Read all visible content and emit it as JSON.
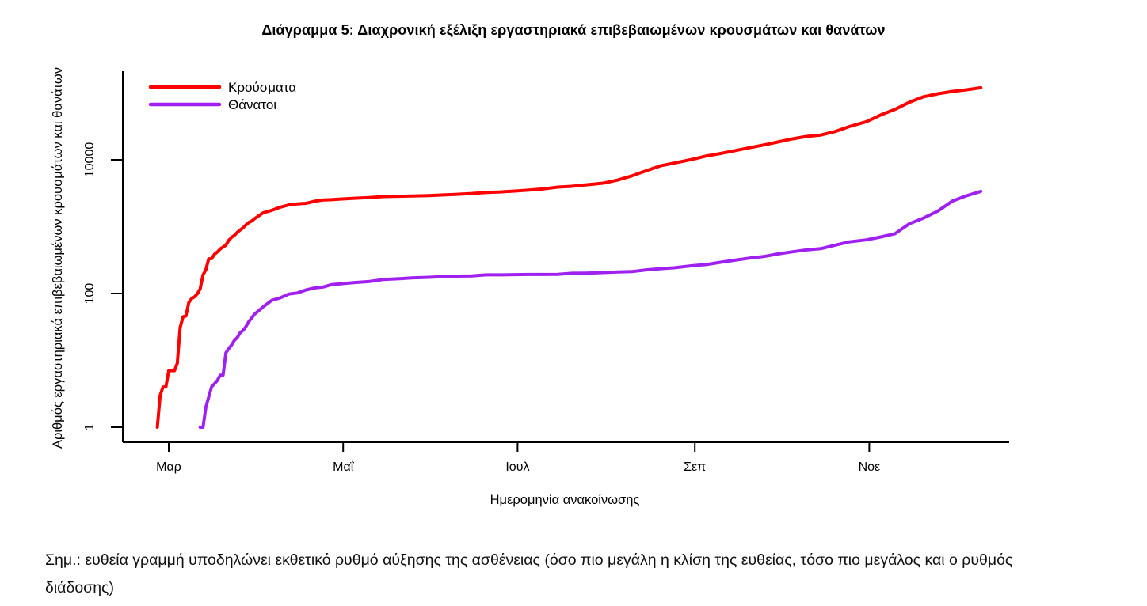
{
  "title": "Διάγραμμα 5: Διαχρονική εξέλιξη εργαστηριακά επιβεβαιωμένων κρουσμάτων και θανάτων",
  "note": {
    "line1": "Σημ.: ευθεία γραμμή υποδηλώνει εκθετικό ρυθμό αύξησης της ασθένειας (όσο πιο μεγάλη η κλίση της ευθείας, τόσο πιο μεγάλος και ο ρυθμός",
    "line2": "διάδοσης)"
  },
  "colors": {
    "cases": "#FF0000",
    "deaths": "#A020F0",
    "axis": "#000000",
    "background": "#FFFFFF"
  },
  "chart_data": {
    "type": "line",
    "title": "Διάγραμμα 5: Διαχρονική εξέλιξη εργαστηριακά επιβεβαιωμένων κρουσμάτων και θανάτων",
    "xlabel": "Ημερομηνία ανακοίνωσης",
    "ylabel": "Αριθμός εργαστηριακά επιβεβαιωμένων κρουσμάτων και θανάτων",
    "y_scale": "log10",
    "ylim": [
      1,
      200000
    ],
    "y_ticks": [
      1,
      100,
      10000
    ],
    "x_unit": "days (0 = first plotted announcement, late Feb; ticks mark month starts)",
    "x_ticks": [
      {
        "label": "Μαρ",
        "day": 4
      },
      {
        "label": "Μαΐ",
        "day": 65
      },
      {
        "label": "Ιουλ",
        "day": 126
      },
      {
        "label": "Σεπ",
        "day": 188
      },
      {
        "label": "Νοε",
        "day": 249
      }
    ],
    "grid": false,
    "legend_position": "top-left",
    "series": [
      {
        "key": "cases",
        "name": "Κρούσματα",
        "color": "#FF0000",
        "points": [
          [
            0,
            1
          ],
          [
            1,
            3
          ],
          [
            2,
            4
          ],
          [
            3,
            4
          ],
          [
            4,
            7
          ],
          [
            6,
            7
          ],
          [
            7,
            9
          ],
          [
            8,
            31
          ],
          [
            9,
            45
          ],
          [
            10,
            46
          ],
          [
            11,
            73
          ],
          [
            12,
            84
          ],
          [
            13,
            89
          ],
          [
            14,
            99
          ],
          [
            15,
            117
          ],
          [
            16,
            190
          ],
          [
            17,
            228
          ],
          [
            18,
            331
          ],
          [
            19,
            331
          ],
          [
            20,
            387
          ],
          [
            21,
            418
          ],
          [
            22,
            464
          ],
          [
            23,
            495
          ],
          [
            24,
            530
          ],
          [
            25,
            624
          ],
          [
            26,
            695
          ],
          [
            27,
            743
          ],
          [
            28,
            821
          ],
          [
            29,
            892
          ],
          [
            30,
            966
          ],
          [
            31,
            1061
          ],
          [
            32,
            1156
          ],
          [
            33,
            1212
          ],
          [
            34,
            1314
          ],
          [
            37,
            1613
          ],
          [
            40,
            1755
          ],
          [
            43,
            1955
          ],
          [
            46,
            2114
          ],
          [
            49,
            2192
          ],
          [
            52,
            2235
          ],
          [
            55,
            2401
          ],
          [
            58,
            2506
          ],
          [
            61,
            2534
          ],
          [
            64,
            2591
          ],
          [
            69,
            2663
          ],
          [
            74,
            2716
          ],
          [
            79,
            2819
          ],
          [
            84,
            2850
          ],
          [
            89,
            2878
          ],
          [
            95,
            2917
          ],
          [
            100,
            2980
          ],
          [
            105,
            3049
          ],
          [
            110,
            3134
          ],
          [
            115,
            3256
          ],
          [
            120,
            3310
          ],
          [
            125,
            3409
          ],
          [
            130,
            3519
          ],
          [
            135,
            3672
          ],
          [
            140,
            3910
          ],
          [
            145,
            4012
          ],
          [
            150,
            4227
          ],
          [
            156,
            4477
          ],
          [
            161,
            4974
          ],
          [
            166,
            5749
          ],
          [
            171,
            6858
          ],
          [
            176,
            8138
          ],
          [
            181,
            8987
          ],
          [
            187,
            10134
          ],
          [
            192,
            11386
          ],
          [
            197,
            12452
          ],
          [
            202,
            13730
          ],
          [
            207,
            15142
          ],
          [
            212,
            16627
          ],
          [
            217,
            18475
          ],
          [
            222,
            20541
          ],
          [
            227,
            22358
          ],
          [
            232,
            23495
          ],
          [
            237,
            26469
          ],
          [
            242,
            31399
          ],
          [
            248,
            37196
          ],
          [
            253,
            46892
          ],
          [
            258,
            56698
          ],
          [
            263,
            72510
          ],
          [
            268,
            87812
          ],
          [
            273,
            97288
          ],
          [
            278,
            105271
          ],
          [
            283,
            111537
          ],
          [
            288,
            119720
          ]
        ]
      },
      {
        "key": "deaths",
        "name": "Θάνατοι",
        "color": "#A020F0",
        "points": [
          [
            15,
            1
          ],
          [
            16,
            1
          ],
          [
            17,
            2
          ],
          [
            19,
            4
          ],
          [
            21,
            5
          ],
          [
            22,
            6
          ],
          [
            23,
            6
          ],
          [
            24,
            13
          ],
          [
            25,
            15
          ],
          [
            26,
            17
          ],
          [
            27,
            20
          ],
          [
            28,
            22
          ],
          [
            29,
            26
          ],
          [
            30,
            28
          ],
          [
            31,
            32
          ],
          [
            32,
            38
          ],
          [
            33,
            43
          ],
          [
            34,
            49
          ],
          [
            37,
            63
          ],
          [
            40,
            79
          ],
          [
            43,
            86
          ],
          [
            46,
            98
          ],
          [
            49,
            102
          ],
          [
            52,
            113
          ],
          [
            55,
            121
          ],
          [
            58,
            125
          ],
          [
            61,
            136
          ],
          [
            64,
            140
          ],
          [
            69,
            146
          ],
          [
            74,
            151
          ],
          [
            79,
            162
          ],
          [
            84,
            166
          ],
          [
            89,
            171
          ],
          [
            95,
            175
          ],
          [
            100,
            179
          ],
          [
            105,
            182
          ],
          [
            110,
            183
          ],
          [
            115,
            190
          ],
          [
            120,
            190
          ],
          [
            125,
            192
          ],
          [
            130,
            193
          ],
          [
            135,
            193
          ],
          [
            140,
            194
          ],
          [
            145,
            201
          ],
          [
            150,
            202
          ],
          [
            156,
            206
          ],
          [
            161,
            210
          ],
          [
            166,
            213
          ],
          [
            171,
            226
          ],
          [
            176,
            235
          ],
          [
            181,
            243
          ],
          [
            187,
            260
          ],
          [
            192,
            271
          ],
          [
            197,
            293
          ],
          [
            202,
            315
          ],
          [
            207,
            338
          ],
          [
            212,
            357
          ],
          [
            217,
            391
          ],
          [
            222,
            420
          ],
          [
            227,
            449
          ],
          [
            232,
            469
          ],
          [
            237,
            528
          ],
          [
            242,
            593
          ],
          [
            248,
            635
          ],
          [
            253,
            702
          ],
          [
            258,
            784
          ],
          [
            263,
            1106
          ],
          [
            268,
            1347
          ],
          [
            273,
            1714
          ],
          [
            278,
            2406
          ],
          [
            283,
            2902
          ],
          [
            288,
            3370
          ]
        ]
      }
    ]
  }
}
